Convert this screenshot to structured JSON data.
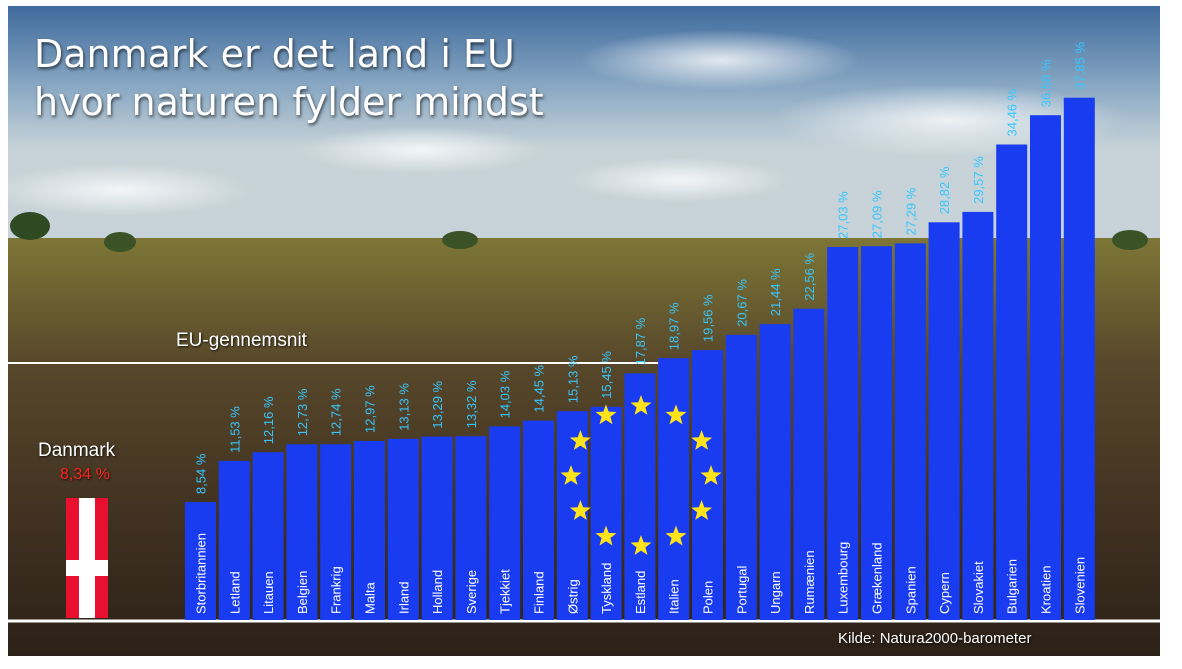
{
  "title_lines": [
    "Danmark er det land i EU",
    "hvor naturen fylder mindst"
  ],
  "eu_average": {
    "label": "EU-gennemsnit"
  },
  "denmark": {
    "name": "Danmark",
    "value_label": "8,34 %",
    "value": 8.34
  },
  "source": "Kilde: Natura2000-barometer",
  "colors": {
    "bar": "#1a3cf0",
    "value_label": "#36c6ff",
    "denmark_value": "#ff2020",
    "flag_red": "#e8102e",
    "star": "#ffe31a"
  },
  "chart_data": {
    "type": "bar",
    "title": "Danmark er det land i EU hvor naturen fylder mindst",
    "xlabel": "",
    "ylabel": "",
    "ylim": [
      0,
      40
    ],
    "categories": [
      "Storbritannien",
      "Letland",
      "Litauen",
      "Belgien",
      "Frankrig",
      "Malta",
      "Irland",
      "Holland",
      "Sverige",
      "Tjekkiet",
      "Finland",
      "Østrig",
      "Tyskland",
      "Estland",
      "Italien",
      "Polen",
      "Portugal",
      "Ungarn",
      "Rumænien",
      "Luxembourg",
      "Grækenland",
      "Spanien",
      "Cypern",
      "Slovakiet",
      "Bulgarien",
      "Kroatien",
      "Slovenien"
    ],
    "values": [
      8.54,
      11.53,
      12.16,
      12.73,
      12.74,
      12.97,
      13.13,
      13.29,
      13.32,
      14.03,
      14.45,
      15.13,
      15.45,
      17.87,
      18.97,
      19.56,
      20.67,
      21.44,
      22.56,
      27.03,
      27.09,
      27.29,
      28.82,
      29.57,
      34.46,
      36.58,
      37.85
    ],
    "value_labels": [
      "8,54 %",
      "11,53 %",
      "12,16 %",
      "12,73 %",
      "12,74 %",
      "12,97 %",
      "13,13 %",
      "13,29 %",
      "13,32 %",
      "14,03 %",
      "14,45 %",
      "15,13 %",
      "15,45 %",
      "17,87 %",
      "18,97 %",
      "19,56 %",
      "20,67 %",
      "21,44 %",
      "22,56 %",
      "27,03 %",
      "27,09 %",
      "27,29 %",
      "28,82 %",
      "29,57 %",
      "34,46 %",
      "36,58 %",
      "37,85 %"
    ],
    "annotations": [
      "EU-gennemsnit",
      "Danmark 8,34 %"
    ]
  }
}
